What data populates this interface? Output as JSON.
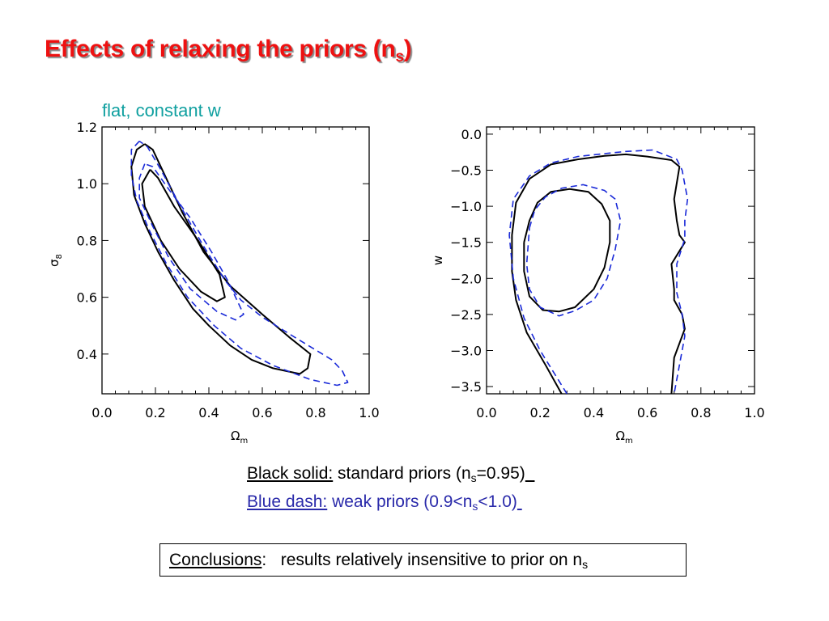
{
  "slide": {
    "title_main": "Effects of relaxing the priors (n",
    "title_sub": "s",
    "title_end": ")",
    "subtitle": "flat, constant w"
  },
  "legend": {
    "black_label": "Black solid:",
    "black_text_a": " standard priors (n",
    "black_sub": "s",
    "black_text_b": "=0.95)",
    "blue_label": "Blue dash:",
    "blue_text_a": " weak priors (0.9<n",
    "blue_sub": "s",
    "blue_text_b": "<1.0)",
    "black_color": "#000000",
    "blue_color": "#2a2aaa"
  },
  "conclusion": {
    "label": "Conclusions",
    "colon": ":",
    "text": "   results relatively insensitive to prior on n",
    "sub": "s"
  },
  "colors": {
    "title": "#ee1111",
    "subtitle": "#10a0a0",
    "dash_line": "#1a2ad8",
    "solid_line": "#000000"
  },
  "chart_data": [
    {
      "type": "contour",
      "xlabel": "Ωm",
      "ylabel": "σ8",
      "xlim": [
        0.0,
        1.0
      ],
      "ylim": [
        0.26,
        1.2
      ],
      "xticks": [
        "0.0",
        "0.2",
        "0.4",
        "0.6",
        "0.8",
        "1.0"
      ],
      "yticks": [
        {
          "v": 0.4,
          "label": "0.4"
        },
        {
          "v": 0.6,
          "label": "0.6"
        },
        {
          "v": 0.8,
          "label": "0.8"
        },
        {
          "v": 1.0,
          "label": "1.0"
        },
        {
          "v": 1.2,
          "label": "1.2"
        }
      ],
      "series": [
        {
          "style": "solid",
          "points": [
            [
              0.18,
              1.05
            ],
            [
              0.15,
              1.0
            ],
            [
              0.16,
              0.92
            ],
            [
              0.22,
              0.8
            ],
            [
              0.29,
              0.7
            ],
            [
              0.37,
              0.62
            ],
            [
              0.43,
              0.586
            ],
            [
              0.46,
              0.6
            ],
            [
              0.44,
              0.68
            ],
            [
              0.36,
              0.8
            ],
            [
              0.27,
              0.92
            ],
            [
              0.21,
              1.02
            ],
            [
              0.18,
              1.05
            ]
          ]
        },
        {
          "style": "solid",
          "points": [
            [
              0.16,
              1.14
            ],
            [
              0.13,
              1.12
            ],
            [
              0.11,
              1.06
            ],
            [
              0.12,
              0.96
            ],
            [
              0.16,
              0.86
            ],
            [
              0.21,
              0.76
            ],
            [
              0.27,
              0.66
            ],
            [
              0.34,
              0.56
            ],
            [
              0.4,
              0.5
            ],
            [
              0.48,
              0.43
            ],
            [
              0.56,
              0.38
            ],
            [
              0.64,
              0.35
            ],
            [
              0.74,
              0.33
            ],
            [
              0.77,
              0.35
            ],
            [
              0.78,
              0.4
            ],
            [
              0.7,
              0.46
            ],
            [
              0.6,
              0.54
            ],
            [
              0.48,
              0.64
            ],
            [
              0.38,
              0.76
            ],
            [
              0.3,
              0.9
            ],
            [
              0.24,
              1.02
            ],
            [
              0.19,
              1.12
            ],
            [
              0.16,
              1.14
            ]
          ]
        },
        {
          "style": "dashed",
          "points": [
            [
              0.16,
              1.07
            ],
            [
              0.14,
              1.02
            ],
            [
              0.14,
              0.95
            ],
            [
              0.19,
              0.85
            ],
            [
              0.25,
              0.74
            ],
            [
              0.33,
              0.63
            ],
            [
              0.43,
              0.55
            ],
            [
              0.5,
              0.52
            ],
            [
              0.53,
              0.54
            ],
            [
              0.5,
              0.6
            ],
            [
              0.47,
              0.66
            ],
            [
              0.41,
              0.76
            ],
            [
              0.33,
              0.88
            ],
            [
              0.25,
              0.98
            ],
            [
              0.19,
              1.06
            ],
            [
              0.16,
              1.07
            ]
          ]
        },
        {
          "style": "dashed",
          "points": [
            [
              0.14,
              1.15
            ],
            [
              0.11,
              1.12
            ],
            [
              0.11,
              1.03
            ],
            [
              0.13,
              0.94
            ],
            [
              0.18,
              0.83
            ],
            [
              0.24,
              0.72
            ],
            [
              0.32,
              0.6
            ],
            [
              0.42,
              0.5
            ],
            [
              0.52,
              0.42
            ],
            [
              0.64,
              0.36
            ],
            [
              0.78,
              0.31
            ],
            [
              0.88,
              0.29
            ],
            [
              0.92,
              0.3
            ],
            [
              0.9,
              0.34
            ],
            [
              0.86,
              0.38
            ],
            [
              0.72,
              0.46
            ],
            [
              0.6,
              0.53
            ],
            [
              0.52,
              0.59
            ],
            [
              0.46,
              0.66
            ],
            [
              0.38,
              0.78
            ],
            [
              0.3,
              0.91
            ],
            [
              0.22,
              1.05
            ],
            [
              0.17,
              1.13
            ],
            [
              0.14,
              1.15
            ]
          ]
        }
      ]
    },
    {
      "type": "contour",
      "xlabel": "Ωm",
      "ylabel": "w",
      "xlim": [
        0.0,
        1.0
      ],
      "ylim": [
        -3.6,
        0.1
      ],
      "xticks": [
        "0.0",
        "0.2",
        "0.4",
        "0.6",
        "0.8",
        "1.0"
      ],
      "yticks": [
        {
          "v": 0.0,
          "label": "0.0"
        },
        {
          "v": -0.5,
          "label": "−0.5"
        },
        {
          "v": -1.0,
          "label": "−1.0"
        },
        {
          "v": -1.5,
          "label": "−1.5"
        },
        {
          "v": -2.0,
          "label": "−2.0"
        },
        {
          "v": -2.5,
          "label": "−2.5"
        },
        {
          "v": -3.0,
          "label": "−3.0"
        },
        {
          "v": -3.5,
          "label": "−3.5"
        }
      ],
      "series": [
        {
          "style": "solid",
          "points": [
            [
              0.14,
              -1.5
            ],
            [
              0.16,
              -1.2
            ],
            [
              0.19,
              -0.95
            ],
            [
              0.24,
              -0.8
            ],
            [
              0.31,
              -0.76
            ],
            [
              0.38,
              -0.8
            ],
            [
              0.43,
              -0.97
            ],
            [
              0.46,
              -1.2
            ],
            [
              0.46,
              -1.5
            ],
            [
              0.44,
              -1.85
            ],
            [
              0.4,
              -2.15
            ],
            [
              0.33,
              -2.4
            ],
            [
              0.27,
              -2.46
            ],
            [
              0.21,
              -2.44
            ],
            [
              0.16,
              -2.25
            ],
            [
              0.14,
              -1.9
            ],
            [
              0.14,
              -1.5
            ]
          ]
        },
        {
          "style": "dashed",
          "points": [
            [
              0.16,
              -1.3
            ],
            [
              0.18,
              -1.05
            ],
            [
              0.22,
              -0.87
            ],
            [
              0.28,
              -0.75
            ],
            [
              0.36,
              -0.7
            ],
            [
              0.44,
              -0.78
            ],
            [
              0.48,
              -0.9
            ],
            [
              0.5,
              -1.2
            ],
            [
              0.48,
              -1.6
            ],
            [
              0.45,
              -2.0
            ],
            [
              0.4,
              -2.3
            ],
            [
              0.33,
              -2.45
            ],
            [
              0.27,
              -2.52
            ],
            [
              0.2,
              -2.4
            ],
            [
              0.16,
              -2.15
            ],
            [
              0.15,
              -1.8
            ],
            [
              0.16,
              -1.3
            ]
          ]
        },
        {
          "style": "solid",
          "points": [
            [
              0.28,
              -3.6
            ],
            [
              0.22,
              -3.2
            ],
            [
              0.15,
              -2.75
            ],
            [
              0.11,
              -2.3
            ],
            [
              0.095,
              -1.9
            ],
            [
              0.095,
              -1.4
            ],
            [
              0.11,
              -0.95
            ],
            [
              0.16,
              -0.62
            ],
            [
              0.24,
              -0.42
            ],
            [
              0.34,
              -0.35
            ],
            [
              0.44,
              -0.3
            ],
            [
              0.52,
              -0.28
            ],
            [
              0.6,
              -0.31
            ],
            [
              0.69,
              -0.36
            ],
            [
              0.72,
              -0.45
            ],
            [
              0.7,
              -0.9
            ],
            [
              0.71,
              -1.2
            ],
            [
              0.72,
              -1.4
            ],
            [
              0.74,
              -1.5
            ],
            [
              0.69,
              -1.8
            ],
            [
              0.7,
              -2.15
            ],
            [
              0.7,
              -2.3
            ],
            [
              0.73,
              -2.5
            ],
            [
              0.74,
              -2.7
            ],
            [
              0.7,
              -3.1
            ],
            [
              0.69,
              -3.6
            ]
          ]
        },
        {
          "style": "dashed",
          "points": [
            [
              0.3,
              -3.6
            ],
            [
              0.2,
              -3.0
            ],
            [
              0.14,
              -2.55
            ],
            [
              0.1,
              -2.0
            ],
            [
              0.085,
              -1.4
            ],
            [
              0.1,
              -0.9
            ],
            [
              0.16,
              -0.58
            ],
            [
              0.24,
              -0.4
            ],
            [
              0.34,
              -0.31
            ],
            [
              0.44,
              -0.27
            ],
            [
              0.52,
              -0.24
            ],
            [
              0.62,
              -0.22
            ],
            [
              0.71,
              -0.35
            ],
            [
              0.73,
              -0.5
            ],
            [
              0.75,
              -0.9
            ],
            [
              0.74,
              -1.2
            ],
            [
              0.74,
              -1.45
            ],
            [
              0.71,
              -1.8
            ],
            [
              0.71,
              -2.2
            ],
            [
              0.73,
              -2.5
            ],
            [
              0.74,
              -2.8
            ],
            [
              0.72,
              -3.2
            ],
            [
              0.7,
              -3.6
            ]
          ]
        }
      ]
    }
  ]
}
